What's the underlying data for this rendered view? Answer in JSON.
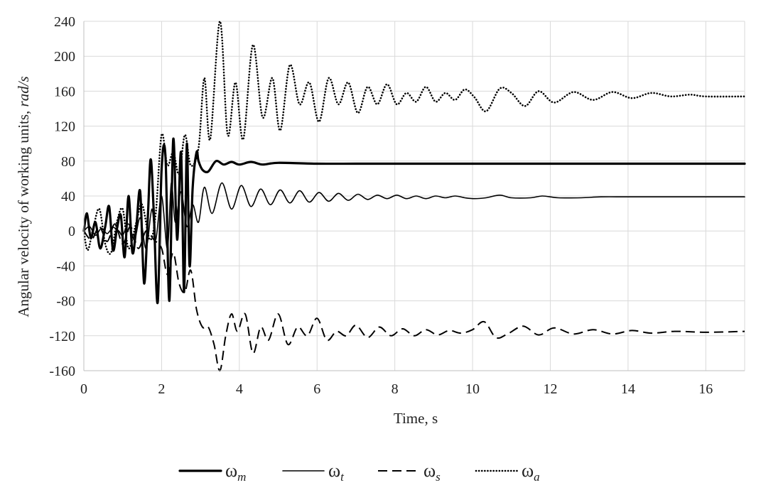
{
  "chart_data": {
    "type": "line",
    "title": "",
    "xlabel": "Time, s",
    "ylabel_main": "Angular velocity of working units, ",
    "ylabel_unit": "rad/s",
    "xlim": [
      0,
      17
    ],
    "ylim": [
      -160,
      240
    ],
    "xticks": [
      0,
      2,
      4,
      6,
      8,
      10,
      12,
      14,
      16
    ],
    "yticks": [
      -160,
      -120,
      -80,
      -40,
      0,
      40,
      80,
      120,
      160,
      200,
      240
    ],
    "grid": true,
    "legend_position": "bottom",
    "series": [
      {
        "symbol": "ω",
        "sub": "m",
        "style": "thick",
        "points": [
          [
            0,
            0
          ],
          [
            0.08,
            20
          ],
          [
            0.18,
            -8
          ],
          [
            0.3,
            10
          ],
          [
            0.42,
            -20
          ],
          [
            0.55,
            5
          ],
          [
            0.65,
            28
          ],
          [
            0.75,
            -22
          ],
          [
            0.85,
            2
          ],
          [
            0.95,
            18
          ],
          [
            1.05,
            -30
          ],
          [
            1.15,
            40
          ],
          [
            1.25,
            -25
          ],
          [
            1.35,
            5
          ],
          [
            1.45,
            45
          ],
          [
            1.55,
            -60
          ],
          [
            1.65,
            20
          ],
          [
            1.72,
            82
          ],
          [
            1.8,
            20
          ],
          [
            1.9,
            -82
          ],
          [
            2.0,
            70
          ],
          [
            2.1,
            85
          ],
          [
            2.2,
            -80
          ],
          [
            2.3,
            105
          ],
          [
            2.4,
            -10
          ],
          [
            2.5,
            90
          ],
          [
            2.58,
            -70
          ],
          [
            2.65,
            100
          ],
          [
            2.72,
            -40
          ],
          [
            2.8,
            50
          ],
          [
            2.9,
            90
          ],
          [
            2.95,
            80
          ],
          [
            3.05,
            70
          ],
          [
            3.2,
            68
          ],
          [
            3.4,
            80
          ],
          [
            3.6,
            76
          ],
          [
            3.8,
            79
          ],
          [
            4.0,
            76
          ],
          [
            4.3,
            79
          ],
          [
            4.6,
            76
          ],
          [
            5,
            78
          ],
          [
            6,
            77
          ],
          [
            7,
            77
          ],
          [
            8,
            77
          ],
          [
            9,
            77
          ],
          [
            10,
            77
          ],
          [
            11,
            77
          ],
          [
            12,
            77
          ],
          [
            13,
            77
          ],
          [
            14,
            77
          ],
          [
            15,
            77
          ],
          [
            16,
            77
          ],
          [
            17,
            77
          ]
        ]
      },
      {
        "symbol": "ω",
        "sub": "t",
        "style": "thin",
        "points": [
          [
            0,
            0
          ],
          [
            0.15,
            5
          ],
          [
            0.3,
            -5
          ],
          [
            0.45,
            3
          ],
          [
            0.6,
            -3
          ],
          [
            0.75,
            4
          ],
          [
            0.9,
            0
          ],
          [
            1.0,
            -5
          ],
          [
            1.15,
            8
          ],
          [
            1.3,
            -10
          ],
          [
            1.45,
            15
          ],
          [
            1.6,
            -20
          ],
          [
            1.75,
            25
          ],
          [
            1.85,
            -10
          ],
          [
            2.0,
            40
          ],
          [
            2.15,
            -20
          ],
          [
            2.25,
            55
          ],
          [
            2.35,
            10
          ],
          [
            2.5,
            45
          ],
          [
            2.65,
            5
          ],
          [
            2.8,
            30
          ],
          [
            2.95,
            10
          ],
          [
            3.1,
            50
          ],
          [
            3.3,
            20
          ],
          [
            3.55,
            55
          ],
          [
            3.8,
            25
          ],
          [
            4.05,
            52
          ],
          [
            4.3,
            28
          ],
          [
            4.55,
            48
          ],
          [
            4.8,
            30
          ],
          [
            5.05,
            47
          ],
          [
            5.3,
            32
          ],
          [
            5.55,
            46
          ],
          [
            5.8,
            33
          ],
          [
            6.05,
            44
          ],
          [
            6.3,
            34
          ],
          [
            6.55,
            43
          ],
          [
            6.8,
            35
          ],
          [
            7.05,
            42
          ],
          [
            7.3,
            36
          ],
          [
            7.55,
            41
          ],
          [
            7.8,
            37
          ],
          [
            8.05,
            41
          ],
          [
            8.3,
            37
          ],
          [
            8.55,
            40
          ],
          [
            8.8,
            37
          ],
          [
            9.05,
            40
          ],
          [
            9.3,
            38
          ],
          [
            9.55,
            40
          ],
          [
            9.8,
            38
          ],
          [
            10.05,
            37
          ],
          [
            10.35,
            38
          ],
          [
            10.7,
            41
          ],
          [
            11.0,
            38
          ],
          [
            11.5,
            38
          ],
          [
            11.8,
            40
          ],
          [
            12.2,
            38
          ],
          [
            12.8,
            38
          ],
          [
            13.3,
            39
          ],
          [
            14,
            39
          ],
          [
            15,
            39
          ],
          [
            16,
            39
          ],
          [
            17,
            39
          ]
        ]
      },
      {
        "symbol": "ω",
        "sub": "s",
        "style": "dashed",
        "points": [
          [
            0,
            0
          ],
          [
            0.2,
            -10
          ],
          [
            0.4,
            5
          ],
          [
            0.6,
            -12
          ],
          [
            0.8,
            8
          ],
          [
            1.0,
            -15
          ],
          [
            1.2,
            5
          ],
          [
            1.4,
            -20
          ],
          [
            1.6,
            0
          ],
          [
            1.8,
            -10
          ],
          [
            2.0,
            -20
          ],
          [
            2.15,
            -50
          ],
          [
            2.3,
            -25
          ],
          [
            2.45,
            -60
          ],
          [
            2.6,
            -70
          ],
          [
            2.75,
            -45
          ],
          [
            2.9,
            -90
          ],
          [
            3.05,
            -110
          ],
          [
            3.2,
            -110
          ],
          [
            3.35,
            -130
          ],
          [
            3.5,
            -160
          ],
          [
            3.65,
            -120
          ],
          [
            3.8,
            -95
          ],
          [
            3.95,
            -115
          ],
          [
            4.15,
            -95
          ],
          [
            4.35,
            -140
          ],
          [
            4.55,
            -110
          ],
          [
            4.75,
            -125
          ],
          [
            5.0,
            -95
          ],
          [
            5.25,
            -130
          ],
          [
            5.5,
            -110
          ],
          [
            5.75,
            -120
          ],
          [
            6.0,
            -100
          ],
          [
            6.25,
            -125
          ],
          [
            6.5,
            -115
          ],
          [
            6.75,
            -120
          ],
          [
            7.0,
            -108
          ],
          [
            7.3,
            -122
          ],
          [
            7.6,
            -110
          ],
          [
            7.9,
            -120
          ],
          [
            8.2,
            -112
          ],
          [
            8.5,
            -120
          ],
          [
            8.8,
            -113
          ],
          [
            9.1,
            -119
          ],
          [
            9.4,
            -114
          ],
          [
            9.7,
            -117
          ],
          [
            10.0,
            -113
          ],
          [
            10.3,
            -104
          ],
          [
            10.6,
            -122
          ],
          [
            10.9,
            -118
          ],
          [
            11.3,
            -109
          ],
          [
            11.7,
            -119
          ],
          [
            12.1,
            -111
          ],
          [
            12.6,
            -118
          ],
          [
            13.1,
            -113
          ],
          [
            13.6,
            -118
          ],
          [
            14.1,
            -114
          ],
          [
            14.6,
            -117
          ],
          [
            15.2,
            -115
          ],
          [
            16,
            -116
          ],
          [
            17,
            -115
          ]
        ]
      },
      {
        "symbol": "ω",
        "sub": "a",
        "style": "dotted",
        "points": [
          [
            0,
            0
          ],
          [
            0.1,
            -22
          ],
          [
            0.25,
            5
          ],
          [
            0.4,
            25
          ],
          [
            0.55,
            -15
          ],
          [
            0.7,
            -25
          ],
          [
            0.85,
            10
          ],
          [
            1.0,
            25
          ],
          [
            1.15,
            -20
          ],
          [
            1.35,
            10
          ],
          [
            1.5,
            30
          ],
          [
            1.7,
            -10
          ],
          [
            1.85,
            20
          ],
          [
            2.0,
            110
          ],
          [
            2.15,
            75
          ],
          [
            2.3,
            90
          ],
          [
            2.45,
            65
          ],
          [
            2.6,
            110
          ],
          [
            2.75,
            75
          ],
          [
            2.95,
            95
          ],
          [
            3.1,
            175
          ],
          [
            3.25,
            105
          ],
          [
            3.5,
            240
          ],
          [
            3.7,
            110
          ],
          [
            3.9,
            170
          ],
          [
            4.1,
            105
          ],
          [
            4.35,
            213
          ],
          [
            4.6,
            130
          ],
          [
            4.85,
            175
          ],
          [
            5.05,
            115
          ],
          [
            5.3,
            190
          ],
          [
            5.55,
            145
          ],
          [
            5.8,
            170
          ],
          [
            6.05,
            125
          ],
          [
            6.3,
            175
          ],
          [
            6.55,
            145
          ],
          [
            6.8,
            170
          ],
          [
            7.05,
            135
          ],
          [
            7.3,
            165
          ],
          [
            7.55,
            145
          ],
          [
            7.8,
            168
          ],
          [
            8.05,
            145
          ],
          [
            8.3,
            158
          ],
          [
            8.55,
            148
          ],
          [
            8.8,
            165
          ],
          [
            9.05,
            148
          ],
          [
            9.3,
            158
          ],
          [
            9.55,
            150
          ],
          [
            9.8,
            162
          ],
          [
            10.05,
            153
          ],
          [
            10.35,
            137
          ],
          [
            10.7,
            163
          ],
          [
            11.0,
            158
          ],
          [
            11.35,
            143
          ],
          [
            11.7,
            160
          ],
          [
            12.1,
            147
          ],
          [
            12.6,
            159
          ],
          [
            13.1,
            150
          ],
          [
            13.6,
            159
          ],
          [
            14.1,
            152
          ],
          [
            14.6,
            158
          ],
          [
            15.1,
            154
          ],
          [
            15.6,
            156
          ],
          [
            16,
            154
          ],
          [
            17,
            154
          ]
        ]
      }
    ]
  }
}
